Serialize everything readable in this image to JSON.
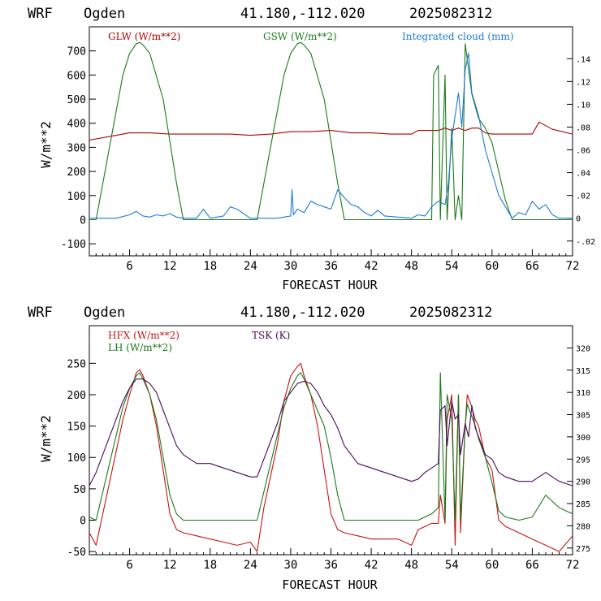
{
  "chart_data": [
    {
      "type": "line",
      "header": {
        "model": "WRF",
        "site": "Ogden",
        "coords": "41.180,-112.020",
        "run": "2025082312"
      },
      "xlabel": "FORECAST HOUR",
      "ylabel": "W/m**2",
      "xlim": [
        0,
        72
      ],
      "ylim": [
        -150,
        800
      ],
      "xticks": [
        6,
        12,
        18,
        24,
        30,
        36,
        42,
        48,
        54,
        60,
        66,
        72
      ],
      "yticks": [
        -100,
        0,
        100,
        200,
        300,
        400,
        500,
        600,
        700
      ],
      "ylim_right": [
        -0.033,
        0.168
      ],
      "yticks_right": [
        -0.02,
        0,
        0.02,
        0.04,
        0.06,
        0.08,
        0.1,
        0.12,
        0.14
      ],
      "yticklabels_right": [
        "-.02",
        "0",
        ".02",
        ".04",
        ".06",
        ".08",
        ".10",
        ".12",
        ".14"
      ],
      "series": [
        {
          "name": "GLW (W/m**2)",
          "color": "#b00000",
          "axis": "left",
          "x": [
            0,
            3,
            6,
            9,
            12,
            15,
            18,
            21,
            24,
            27,
            30,
            33,
            36,
            39,
            42,
            45,
            48,
            49,
            51,
            52,
            53,
            54,
            55,
            56,
            57,
            58,
            59,
            60,
            63,
            66,
            67,
            69,
            72
          ],
          "y": [
            330,
            345,
            360,
            360,
            355,
            355,
            355,
            355,
            350,
            355,
            365,
            365,
            370,
            360,
            360,
            355,
            355,
            370,
            370,
            370,
            380,
            370,
            380,
            370,
            380,
            380,
            360,
            355,
            355,
            355,
            405,
            375,
            355
          ]
        },
        {
          "name": "GSW (W/m**2)",
          "color": "#1a7a1a",
          "axis": "left",
          "x": [
            0,
            1,
            3,
            5,
            6,
            7,
            7.5,
            8,
            9,
            11,
            13,
            14,
            24,
            25,
            27,
            29,
            30,
            31,
            31.5,
            32,
            33,
            35,
            37,
            38,
            51,
            51.3,
            52,
            52.3,
            53,
            53.3,
            54,
            54.5,
            55,
            55.5,
            56,
            57,
            58,
            59,
            60,
            61,
            62,
            63,
            72
          ],
          "y": [
            0,
            0,
            300,
            600,
            690,
            730,
            735,
            725,
            690,
            500,
            150,
            0,
            0,
            0,
            300,
            600,
            690,
            730,
            735,
            725,
            690,
            500,
            150,
            0,
            0,
            600,
            640,
            0,
            600,
            0,
            380,
            0,
            100,
            0,
            730,
            520,
            420,
            380,
            320,
            200,
            80,
            0,
            0
          ]
        },
        {
          "name": "Integrated cloud (mm)",
          "color": "#1e7ad8",
          "axis": "right",
          "x": [
            0,
            4,
            6,
            7,
            8,
            9,
            10,
            11,
            12,
            13,
            14,
            16,
            17,
            18,
            20,
            21,
            22,
            24,
            28,
            30,
            30.2,
            30.4,
            31,
            32,
            33,
            34,
            35,
            36,
            37,
            38,
            39,
            40,
            41,
            42,
            43,
            44,
            48,
            49,
            50,
            51,
            52,
            53,
            53.5,
            54,
            54.5,
            55,
            55.5,
            56,
            56.5,
            57,
            57.5,
            58,
            59,
            60,
            61,
            62,
            63,
            64,
            65,
            66,
            67,
            68,
            69,
            70,
            72
          ],
          "y": [
            0,
            0,
            0.003,
            0.006,
            0.002,
            0.001,
            0.003,
            0.002,
            0.004,
            0.001,
            0,
            0,
            0.008,
            0,
            0.002,
            0.01,
            0.008,
            0,
            0,
            0.002,
            0.025,
            0.003,
            0.008,
            0.005,
            0.015,
            0.012,
            0.01,
            0.008,
            0.025,
            0.018,
            0.012,
            0.01,
            0.005,
            0.002,
            0.007,
            0.002,
            0,
            0.003,
            0.002,
            0.01,
            0.015,
            0.012,
            0.03,
            0.07,
            0.09,
            0.11,
            0.08,
            0.13,
            0.145,
            0.11,
            0.1,
            0.09,
            0.06,
            0.04,
            0.02,
            0.01,
            0,
            0.005,
            0.003,
            0.015,
            0.008,
            0.012,
            0.003,
            0,
            0
          ]
        }
      ]
    },
    {
      "type": "line",
      "header": {
        "model": "WRF",
        "site": "Ogden",
        "coords": "41.180,-112.020",
        "run": "2025082312"
      },
      "xlabel": "FORECAST HOUR",
      "ylabel": "W/m**2",
      "xlim": [
        0,
        72
      ],
      "ylim": [
        -55,
        310
      ],
      "xticks": [
        6,
        12,
        18,
        24,
        30,
        36,
        42,
        48,
        54,
        60,
        66,
        72
      ],
      "yticks": [
        -50,
        0,
        50,
        100,
        150,
        200,
        250
      ],
      "ylim_right": [
        273.5,
        325
      ],
      "yticks_right": [
        275,
        280,
        285,
        290,
        295,
        300,
        305,
        310,
        315,
        320
      ],
      "series": [
        {
          "name": "HFX (W/m**2)",
          "color": "#c81414",
          "axis": "left",
          "x": [
            0,
            1,
            3,
            5,
            6,
            7,
            7.5,
            8,
            9,
            10,
            11,
            12,
            13,
            14,
            16,
            18,
            20,
            22,
            24,
            25,
            26,
            28,
            29,
            30,
            31,
            31.5,
            32,
            33,
            34,
            35,
            36,
            37,
            38,
            40,
            42,
            44,
            46,
            48,
            49,
            50,
            51,
            52,
            52.3,
            53,
            53.3,
            54,
            54.5,
            55,
            55.3,
            56,
            56.3,
            57,
            57.5,
            58,
            59,
            60,
            61,
            62,
            64,
            66,
            68,
            70,
            72
          ],
          "y": [
            -20,
            -40,
            60,
            160,
            200,
            235,
            240,
            230,
            200,
            150,
            80,
            10,
            -15,
            -20,
            -25,
            -30,
            -35,
            -40,
            -35,
            -50,
            20,
            120,
            190,
            230,
            245,
            250,
            230,
            200,
            150,
            80,
            10,
            -15,
            -20,
            -25,
            -30,
            -30,
            -30,
            -40,
            -15,
            -10,
            -5,
            -5,
            40,
            -5,
            160,
            200,
            -40,
            200,
            -20,
            150,
            200,
            180,
            160,
            150,
            100,
            80,
            0,
            -10,
            -20,
            -30,
            -40,
            -50,
            -25
          ]
        },
        {
          "name": "LH  (W/m**2)",
          "color": "#1a7a1a",
          "axis": "left",
          "x": [
            0,
            1,
            3,
            5,
            6,
            7,
            7.5,
            8,
            9,
            10,
            11,
            12,
            13,
            14,
            24,
            25,
            27,
            29,
            30,
            31,
            31.5,
            32,
            33,
            35,
            36,
            37,
            38,
            48,
            49,
            50,
            51,
            52,
            52.3,
            53,
            53.3,
            54,
            54.5,
            55,
            55.3,
            56,
            56.3,
            57,
            57.5,
            58,
            59,
            60,
            61,
            62,
            64,
            66,
            68,
            70,
            72
          ],
          "y": [
            5,
            0,
            90,
            180,
            210,
            230,
            235,
            225,
            200,
            160,
            100,
            40,
            10,
            0,
            0,
            0,
            90,
            180,
            210,
            230,
            235,
            225,
            200,
            150,
            100,
            40,
            0,
            0,
            0,
            5,
            10,
            20,
            235,
            0,
            200,
            160,
            0,
            200,
            0,
            150,
            185,
            165,
            150,
            130,
            100,
            60,
            15,
            5,
            0,
            5,
            40,
            20,
            10
          ]
        },
        {
          "name": "TSK (K)",
          "color": "#4a0a5a",
          "axis": "right",
          "x": [
            0,
            1,
            3,
            5,
            6,
            7,
            8,
            9,
            10,
            11,
            12,
            13,
            14,
            15,
            16,
            18,
            20,
            22,
            24,
            25,
            26,
            28,
            29,
            30,
            31,
            32,
            33,
            34,
            35,
            36,
            37,
            38,
            40,
            42,
            44,
            46,
            48,
            49,
            50,
            51,
            52,
            52.3,
            53,
            53.3,
            54,
            54.5,
            55,
            55.3,
            56,
            56.5,
            57,
            57.5,
            58,
            59,
            60,
            61,
            62,
            64,
            66,
            68,
            70,
            72
          ],
          "y": [
            289,
            292,
            300,
            308,
            311,
            313,
            313,
            312,
            310,
            306,
            302,
            298,
            296,
            295,
            294,
            294,
            293,
            292,
            291,
            291,
            295,
            303,
            308,
            310,
            312,
            312.5,
            312,
            310,
            307,
            305,
            302,
            298,
            294,
            293,
            292,
            291,
            290,
            290.5,
            292,
            293,
            294,
            306,
            307,
            298,
            308,
            304,
            305,
            296,
            303,
            300,
            307,
            302,
            300,
            296,
            295,
            292,
            291,
            290,
            290,
            292,
            290,
            289
          ]
        }
      ]
    }
  ]
}
